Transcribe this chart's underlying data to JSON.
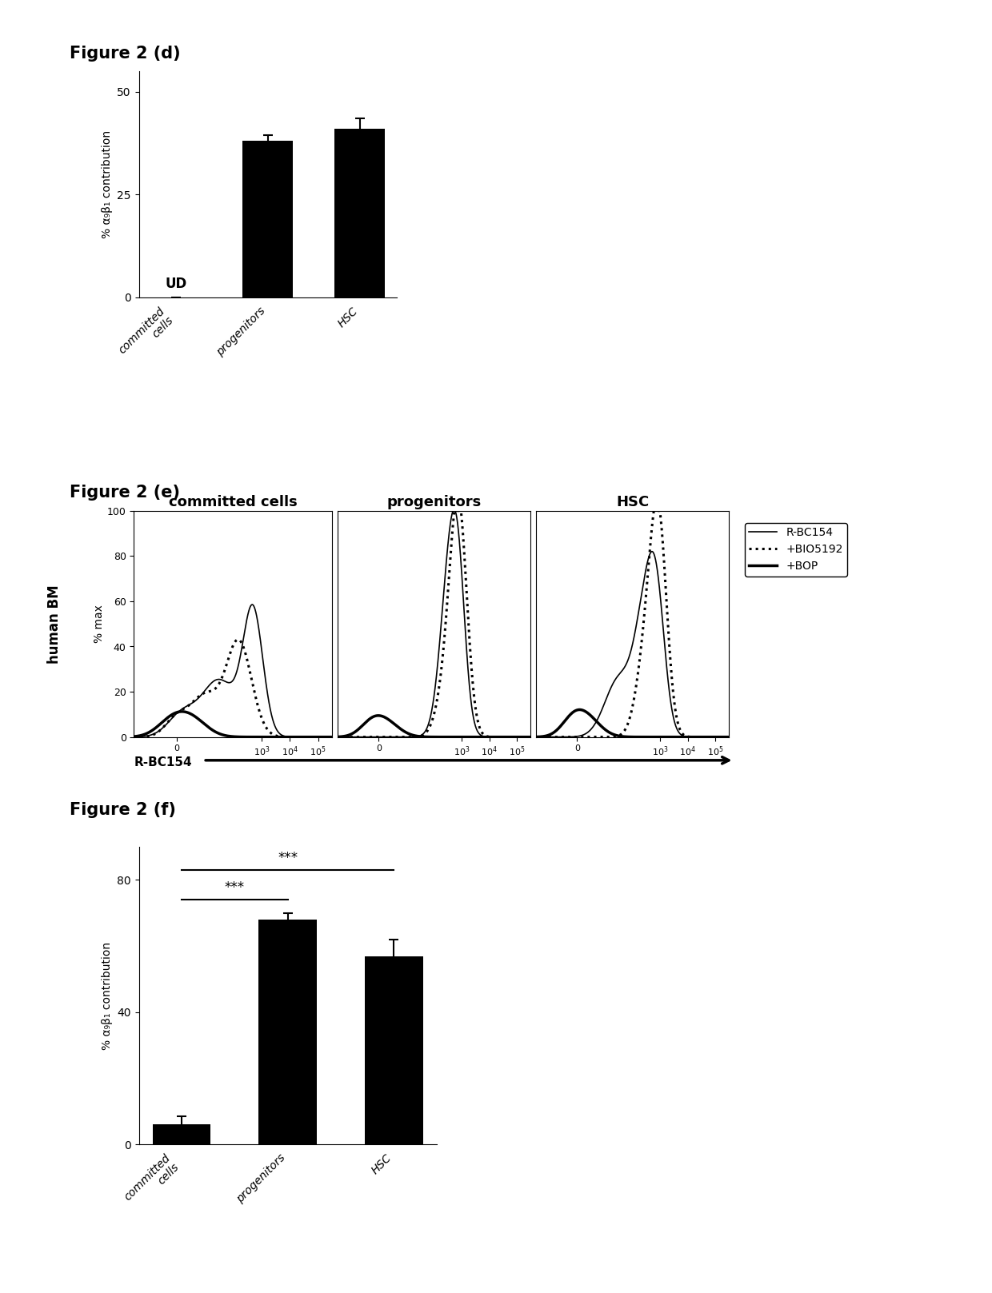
{
  "fig_d": {
    "title": "Figure 2 (d)",
    "categories": [
      "committed\ncells",
      "progenitors",
      "HSC"
    ],
    "values": [
      0,
      38,
      41
    ],
    "errors": [
      0,
      1.5,
      2.5
    ],
    "ud_label": "UD",
    "ylabel": "% α₉β₁ contribution",
    "ylim": [
      0,
      55
    ],
    "yticks": [
      0,
      25,
      50
    ],
    "bar_color": "#000000"
  },
  "fig_e": {
    "title": "Figure 2 (e)",
    "panel_titles": [
      "committed cells",
      "progenitors",
      "HSC"
    ],
    "ylabel_left": "human BM",
    "ylabel_inner": "% max",
    "xlabel": "R-BC154",
    "yticks": [
      0,
      20,
      40,
      60,
      80,
      100
    ],
    "legend_labels": [
      "R-BC154",
      "+BIO5192",
      "+BOP"
    ]
  },
  "fig_f": {
    "title": "Figure 2 (f)",
    "categories": [
      "committed\ncells",
      "progenitors",
      "HSC"
    ],
    "values": [
      6,
      68,
      57
    ],
    "errors": [
      2.5,
      2.0,
      5.0
    ],
    "ylabel": "% α₉β₁ contribution",
    "ylim": [
      0,
      90
    ],
    "yticks": [
      0,
      40,
      80
    ],
    "bar_color": "#000000"
  },
  "background_color": "#ffffff",
  "font_color": "#000000"
}
